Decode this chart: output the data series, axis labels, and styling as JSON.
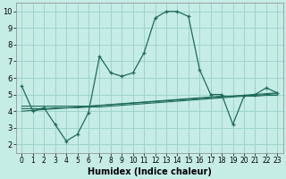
{
  "xlabel": "Humidex (Indice chaleur)",
  "xlim": [
    -0.5,
    23.5
  ],
  "ylim": [
    1.5,
    10.5
  ],
  "yticks": [
    2,
    3,
    4,
    5,
    6,
    7,
    8,
    9,
    10
  ],
  "xticks": [
    0,
    1,
    2,
    3,
    4,
    5,
    6,
    7,
    8,
    9,
    10,
    11,
    12,
    13,
    14,
    15,
    16,
    17,
    18,
    19,
    20,
    21,
    22,
    23
  ],
  "bg_color": "#c6ece6",
  "grid_color": "#9dd4ca",
  "line_color": "#1e6b5a",
  "line1_x": [
    0,
    1,
    2,
    3,
    4,
    4,
    5,
    5,
    6,
    7,
    8,
    9,
    10,
    11,
    12,
    13,
    14,
    15,
    16,
    17,
    18,
    19,
    19,
    20,
    21,
    22,
    23
  ],
  "line1_y": [
    5.5,
    4.0,
    4.2,
    3.2,
    2.2,
    2.2,
    2.6,
    2.6,
    3.9,
    7.3,
    6.3,
    6.1,
    6.3,
    7.5,
    9.6,
    10.0,
    10.0,
    9.7,
    6.5,
    5.0,
    5.0,
    3.2,
    3.2,
    4.9,
    5.0,
    5.4,
    5.1
  ],
  "line1_mx": [
    0,
    1,
    2,
    3,
    4,
    5,
    6,
    7,
    8,
    9,
    10,
    11,
    12,
    13,
    14,
    15,
    16,
    17,
    18,
    19,
    20,
    21,
    22,
    23
  ],
  "line1_my": [
    5.5,
    4.0,
    4.2,
    3.2,
    2.2,
    2.6,
    3.9,
    7.3,
    6.3,
    6.1,
    6.3,
    7.5,
    9.6,
    10.0,
    10.0,
    9.7,
    6.5,
    5.0,
    5.0,
    3.2,
    4.9,
    5.0,
    5.4,
    5.1
  ],
  "line2_x": [
    0,
    1,
    2,
    3,
    4,
    5,
    6,
    7,
    8,
    9,
    10,
    11,
    12,
    13,
    14,
    15,
    16,
    17,
    18,
    19,
    20,
    21,
    22,
    23
  ],
  "line2_y": [
    4.3,
    4.3,
    4.3,
    4.3,
    4.3,
    4.3,
    4.3,
    4.35,
    4.4,
    4.45,
    4.5,
    4.55,
    4.6,
    4.65,
    4.7,
    4.75,
    4.8,
    4.85,
    4.9,
    4.9,
    4.95,
    4.95,
    5.0,
    5.05
  ],
  "line3_x": [
    0,
    1,
    2,
    3,
    4,
    5,
    6,
    7,
    8,
    9,
    10,
    11,
    12,
    13,
    14,
    15,
    16,
    17,
    18,
    19,
    20,
    21,
    22,
    23
  ],
  "line3_y": [
    4.15,
    4.15,
    4.15,
    4.2,
    4.2,
    4.2,
    4.25,
    4.25,
    4.3,
    4.35,
    4.4,
    4.45,
    4.5,
    4.55,
    4.6,
    4.65,
    4.7,
    4.75,
    4.8,
    4.85,
    4.9,
    4.9,
    4.95,
    4.95
  ],
  "line4_x": [
    0,
    23
  ],
  "line4_y": [
    4.0,
    5.1
  ]
}
